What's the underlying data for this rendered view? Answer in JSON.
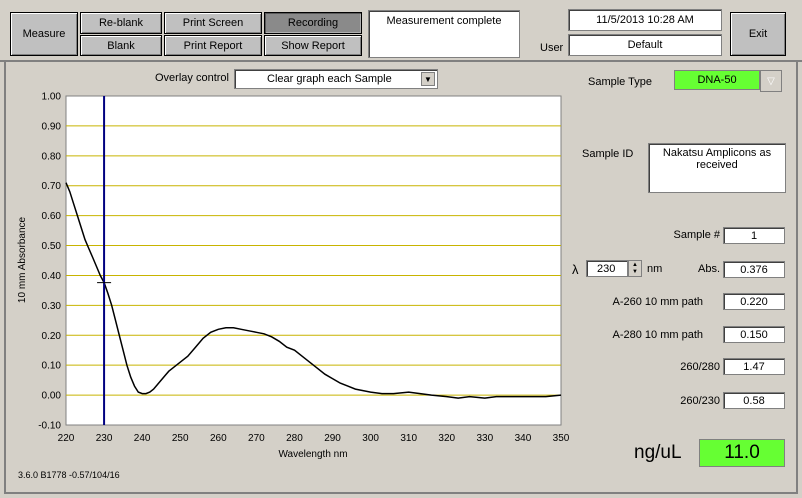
{
  "toolbar": {
    "measure": "Measure",
    "reblank": "Re-blank",
    "blank": "Blank",
    "print_screen": "Print Screen",
    "print_report": "Print Report",
    "recording": "Recording",
    "show_report": "Show Report",
    "status": "Measurement complete",
    "datetime": "11/5/2013  10:28 AM",
    "user_label": "User",
    "user": "Default",
    "exit": "Exit"
  },
  "overlay": {
    "label": "Overlay control",
    "value": "Clear graph each Sample"
  },
  "sample": {
    "type_label": "Sample Type",
    "type_value": "DNA-50",
    "id_label": "Sample ID",
    "id_value": "Nakatsu Amplicons as received",
    "num_label": "Sample #",
    "num_value": "1",
    "lambda_symbol": "λ",
    "lambda_value": "230",
    "lambda_unit": "nm",
    "abs_label": "Abs.",
    "abs_value": "0.376",
    "a260_label": "A-260 10 mm path",
    "a260_value": "0.220",
    "a280_label": "A-280 10 mm path",
    "a280_value": "0.150",
    "r260280_label": "260/280",
    "r260280_value": "1.47",
    "r260230_label": "260/230",
    "r260230_value": "0.58",
    "conc_label": "ng/uL",
    "conc_value": "11.0",
    "conc_color": "#66ff33",
    "type_color": "#66ff33"
  },
  "version": "3.6.0 B1778 -0.57/104/16",
  "chart_data": {
    "type": "line",
    "xlabel": "Wavelength nm",
    "ylabel": "10 mm Absorbance",
    "xlim": [
      220,
      350
    ],
    "ylim": [
      -0.1,
      1.0
    ],
    "xticks": [
      220,
      230,
      240,
      250,
      260,
      270,
      280,
      290,
      300,
      310,
      320,
      330,
      340,
      350
    ],
    "yticks": [
      -0.1,
      0.0,
      0.1,
      0.2,
      0.3,
      0.4,
      0.5,
      0.6,
      0.7,
      0.8,
      0.9,
      1.0
    ],
    "ytick_labels": [
      "-0.10",
      "0.00",
      "0.10",
      "0.20",
      "0.30",
      "0.40",
      "0.50",
      "0.60",
      "0.70",
      "0.80",
      "0.90",
      "1.00"
    ],
    "cursor_x": 230,
    "cursor_y": 0.376,
    "grid_color": "#c8b400",
    "cursor_color": "#000080",
    "series": [
      {
        "x": [
          220,
          221,
          222,
          223,
          224,
          225,
          226,
          227,
          228,
          229,
          230,
          231,
          232,
          233,
          234,
          235,
          236,
          237,
          238,
          239,
          240,
          241,
          242,
          243,
          244,
          245,
          246,
          247,
          248,
          250,
          252,
          254,
          256,
          258,
          260,
          262,
          264,
          266,
          268,
          270,
          272,
          274,
          276,
          278,
          280,
          282,
          284,
          286,
          288,
          290,
          292,
          294,
          296,
          298,
          300,
          303,
          306,
          310,
          313,
          316,
          320,
          323,
          326,
          330,
          333,
          336,
          340,
          343,
          346,
          350
        ],
        "y": [
          0.71,
          0.68,
          0.64,
          0.6,
          0.56,
          0.52,
          0.49,
          0.46,
          0.43,
          0.4,
          0.376,
          0.34,
          0.3,
          0.25,
          0.2,
          0.15,
          0.1,
          0.06,
          0.03,
          0.01,
          0.005,
          0.005,
          0.01,
          0.02,
          0.035,
          0.05,
          0.065,
          0.08,
          0.09,
          0.11,
          0.13,
          0.16,
          0.19,
          0.21,
          0.22,
          0.225,
          0.225,
          0.22,
          0.215,
          0.21,
          0.205,
          0.195,
          0.18,
          0.16,
          0.15,
          0.13,
          0.11,
          0.09,
          0.07,
          0.055,
          0.04,
          0.03,
          0.02,
          0.015,
          0.01,
          0.005,
          0.005,
          0.01,
          0.005,
          0.0,
          -0.005,
          -0.01,
          -0.005,
          -0.01,
          -0.005,
          -0.005,
          -0.005,
          -0.005,
          -0.005,
          0.0
        ]
      }
    ]
  }
}
